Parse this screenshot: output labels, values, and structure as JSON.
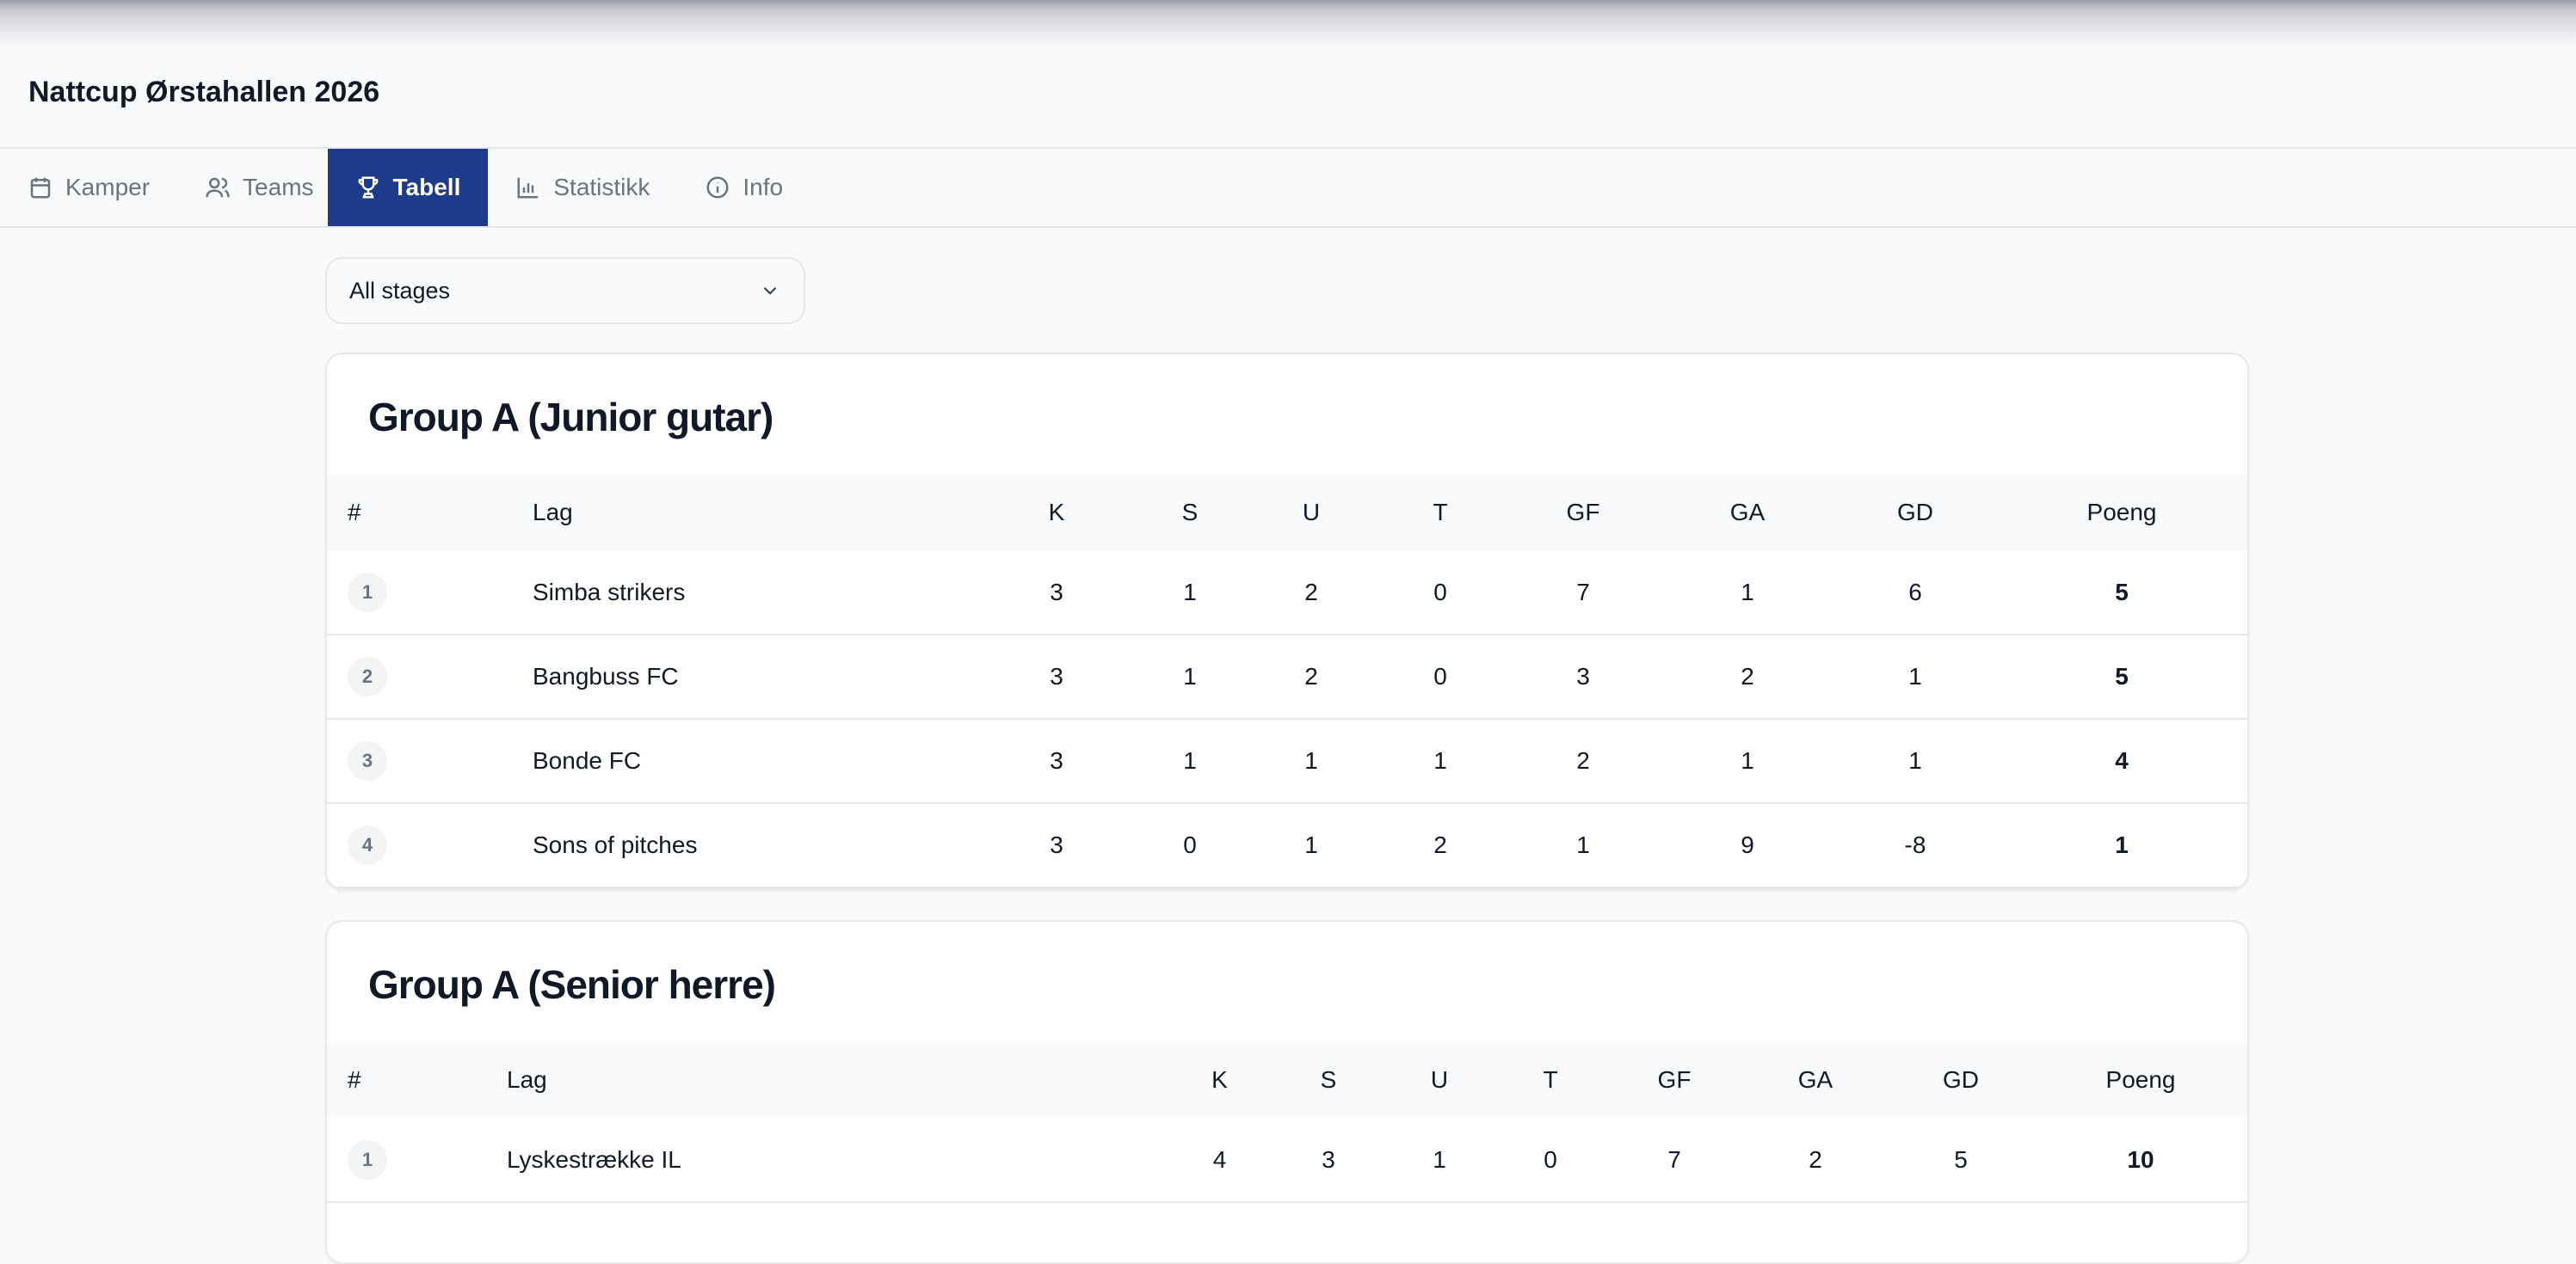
{
  "app": {
    "title": "Nattcup Ørstahallen 2026"
  },
  "tabs": [
    {
      "label": "Kamper",
      "icon": "calendar-icon"
    },
    {
      "label": "Teams",
      "icon": "users-icon"
    },
    {
      "label": "Tabell",
      "icon": "trophy-icon",
      "active": true
    },
    {
      "label": "Statistikk",
      "icon": "bar-chart-icon"
    },
    {
      "label": "Info",
      "icon": "info-icon"
    }
  ],
  "filter": {
    "selected": "All stages"
  },
  "columns": [
    "#",
    "Lag",
    "K",
    "S",
    "U",
    "T",
    "GF",
    "GA",
    "GD",
    "Poeng"
  ],
  "groups": [
    {
      "title": "Group A (Junior gutar)",
      "rows": [
        [
          "1",
          "Simba strikers",
          "3",
          "1",
          "2",
          "0",
          "7",
          "1",
          "6",
          "5"
        ],
        [
          "2",
          "Bangbuss FC",
          "3",
          "1",
          "2",
          "0",
          "3",
          "2",
          "1",
          "5"
        ],
        [
          "3",
          "Bonde FC",
          "3",
          "1",
          "1",
          "1",
          "2",
          "1",
          "1",
          "4"
        ],
        [
          "4",
          "Sons of pitches",
          "3",
          "0",
          "1",
          "2",
          "1",
          "9",
          "-8",
          "1"
        ]
      ]
    },
    {
      "title": "Group A (Senior herre)",
      "rows": [
        [
          "1",
          "Lyskestrække IL",
          "4",
          "3",
          "1",
          "0",
          "7",
          "2",
          "5",
          "10"
        ]
      ]
    }
  ],
  "colors": {
    "accent": "#1e3a8a"
  }
}
